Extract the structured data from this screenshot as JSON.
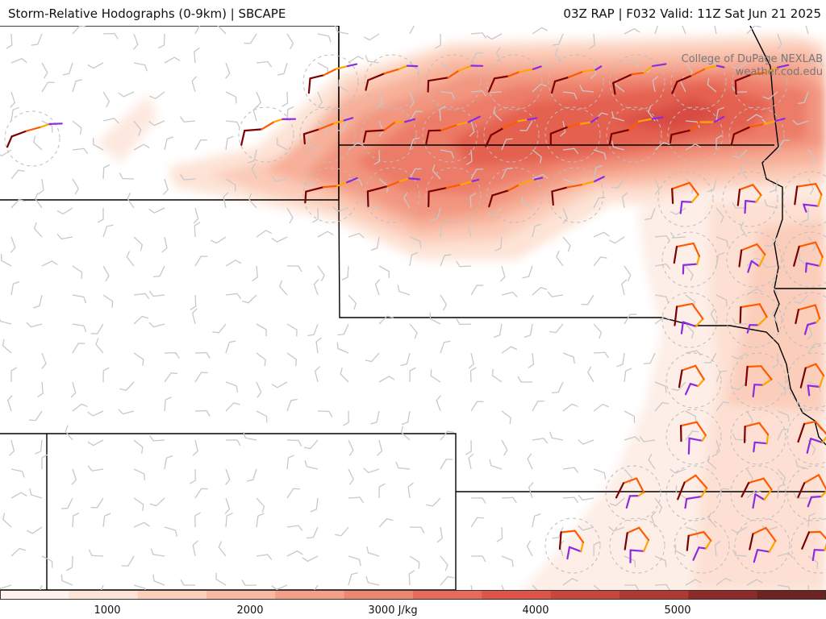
{
  "header": {
    "left_title": "Storm-Relative Hodographs (0-9km) | SBCAPE",
    "right_title": "03Z RAP | F032 Valid: 11Z Sat Jun 21 2025"
  },
  "credits": {
    "line1": "College of DuPage NEXLAB",
    "line2": "weather.cod.edu"
  },
  "colorbar": {
    "unit": "J/kg",
    "labels": [
      "1000",
      "2000",
      "3000 J/kg",
      "4000",
      "5000"
    ],
    "colors": [
      "#fdf2ec",
      "#fde3d6",
      "#fccfbd",
      "#f9b8a2",
      "#f49f88",
      "#ef8671",
      "#e96a5a",
      "#de5449",
      "#c8463c",
      "#b03a33",
      "#8e2b2a",
      "#6e2222"
    ]
  },
  "legend_hodograph_colors": {
    "0-1km": "#7b0000",
    "1-3km": "#ff5a00",
    "3-6km": "#ffa500",
    "6-9km": "#8a2be2"
  }
}
